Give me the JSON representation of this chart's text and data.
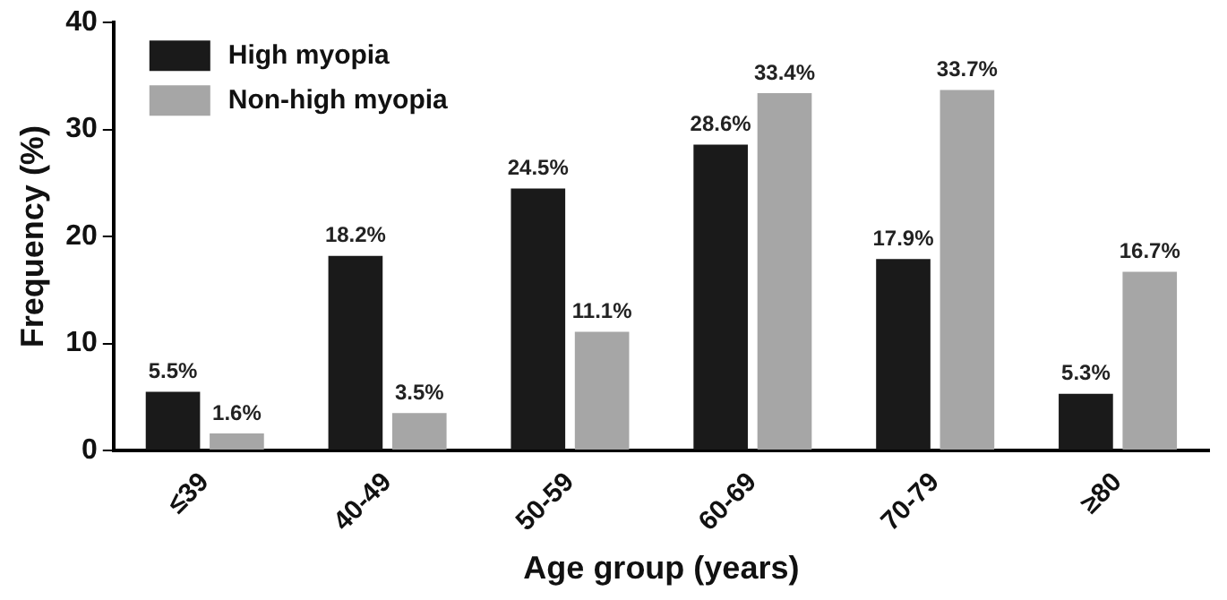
{
  "chart_data": {
    "type": "bar",
    "xlabel": "Age group (years)",
    "ylabel": "Frequency (%)",
    "categories": [
      "≤39",
      "40-49",
      "50-59",
      "60-69",
      "70-79",
      "≥80"
    ],
    "series": [
      {
        "name": "High myopia",
        "color": "#1a1a1a",
        "values": [
          5.5,
          18.2,
          24.5,
          28.6,
          17.9,
          5.3
        ],
        "value_labels": [
          "5.5%",
          "18.2%",
          "24.5%",
          "28.6%",
          "17.9%",
          "5.3%"
        ]
      },
      {
        "name": "Non-high myopia",
        "color": "#a6a6a6",
        "values": [
          1.6,
          3.5,
          11.1,
          33.4,
          33.7,
          16.7
        ],
        "value_labels": [
          "1.6%",
          "3.5%",
          "11.1%",
          "33.4%",
          "33.7%",
          "16.7%"
        ]
      }
    ],
    "ylim": [
      0,
      40
    ],
    "yticks": [
      0,
      10,
      20,
      30,
      40
    ],
    "grid": false,
    "legend": "top left"
  }
}
